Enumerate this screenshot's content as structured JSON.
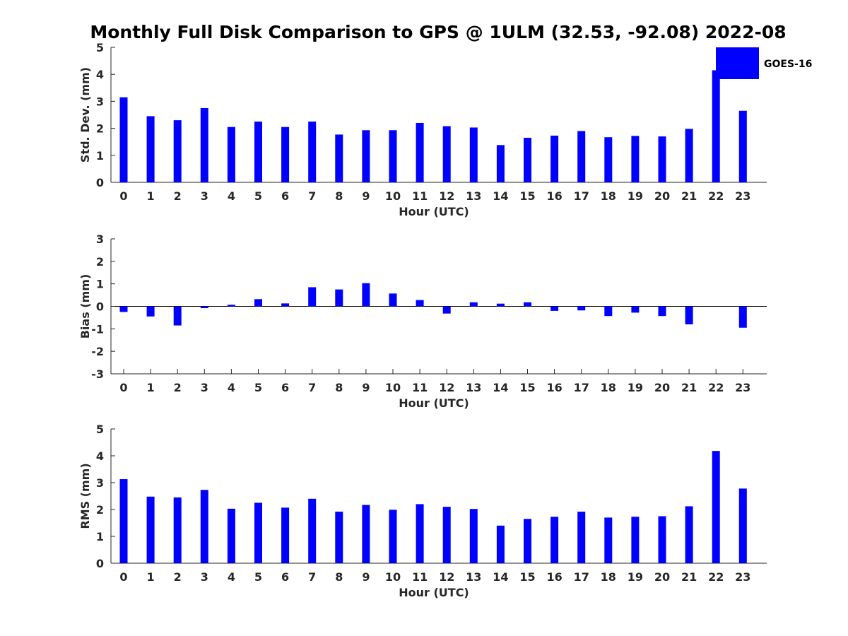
{
  "figure_title": "Monthly Full Disk Comparison to GPS @ 1ULM (32.53, -92.08) 2022-08",
  "legend_label": "GOES-16",
  "colors": {
    "bar": "#0000ff",
    "axis": "#262626",
    "background": "#ffffff"
  },
  "chart_data": [
    {
      "type": "bar",
      "id": "std",
      "categories": [
        "0",
        "1",
        "2",
        "3",
        "4",
        "5",
        "6",
        "7",
        "8",
        "9",
        "10",
        "11",
        "12",
        "13",
        "14",
        "15",
        "16",
        "17",
        "18",
        "19",
        "20",
        "21",
        "22",
        "23"
      ],
      "series": [
        {
          "name": "GOES-16",
          "values": [
            3.15,
            2.45,
            2.3,
            2.75,
            2.05,
            2.25,
            2.05,
            2.25,
            1.77,
            1.93,
            1.93,
            2.2,
            2.08,
            2.03,
            1.38,
            1.65,
            1.73,
            1.9,
            1.67,
            1.72,
            1.7,
            1.98,
            4.15,
            2.65
          ]
        }
      ],
      "xlabel": "Hour (UTC)",
      "ylabel": "Std. Dev. (mm)",
      "ylim": [
        0,
        5
      ],
      "yticks": [
        "0",
        "1",
        "2",
        "3",
        "4",
        "5"
      ],
      "legend": "top-right"
    },
    {
      "type": "bar",
      "id": "bias",
      "categories": [
        "0",
        "1",
        "2",
        "3",
        "4",
        "5",
        "6",
        "7",
        "8",
        "9",
        "10",
        "11",
        "12",
        "13",
        "14",
        "15",
        "16",
        "17",
        "18",
        "19",
        "20",
        "21",
        "22",
        "23"
      ],
      "series": [
        {
          "name": "GOES-16",
          "values": [
            -0.25,
            -0.45,
            -0.85,
            -0.08,
            0.07,
            0.32,
            0.13,
            0.85,
            0.75,
            1.03,
            0.57,
            0.28,
            -0.32,
            0.18,
            0.12,
            0.18,
            -0.2,
            -0.18,
            -0.43,
            -0.28,
            -0.43,
            -0.8,
            0.0,
            -0.95
          ]
        }
      ],
      "xlabel": "Hour (UTC)",
      "ylabel": "Bias (mm)",
      "ylim": [
        -3,
        3
      ],
      "yticks": [
        "-3",
        "-2",
        "-1",
        "0",
        "1",
        "2",
        "3"
      ],
      "zero_line": true
    },
    {
      "type": "bar",
      "id": "rms",
      "categories": [
        "0",
        "1",
        "2",
        "3",
        "4",
        "5",
        "6",
        "7",
        "8",
        "9",
        "10",
        "11",
        "12",
        "13",
        "14",
        "15",
        "16",
        "17",
        "18",
        "19",
        "20",
        "21",
        "22",
        "23"
      ],
      "series": [
        {
          "name": "GOES-16",
          "values": [
            3.13,
            2.48,
            2.45,
            2.73,
            2.03,
            2.25,
            2.07,
            2.4,
            1.92,
            2.17,
            1.99,
            2.2,
            2.1,
            2.02,
            1.4,
            1.65,
            1.73,
            1.92,
            1.7,
            1.73,
            1.75,
            2.12,
            4.18,
            2.78
          ]
        }
      ],
      "xlabel": "Hour (UTC)",
      "ylabel": "RMS (mm)",
      "ylim": [
        0,
        5
      ],
      "yticks": [
        "0",
        "1",
        "2",
        "3",
        "4",
        "5"
      ]
    }
  ]
}
